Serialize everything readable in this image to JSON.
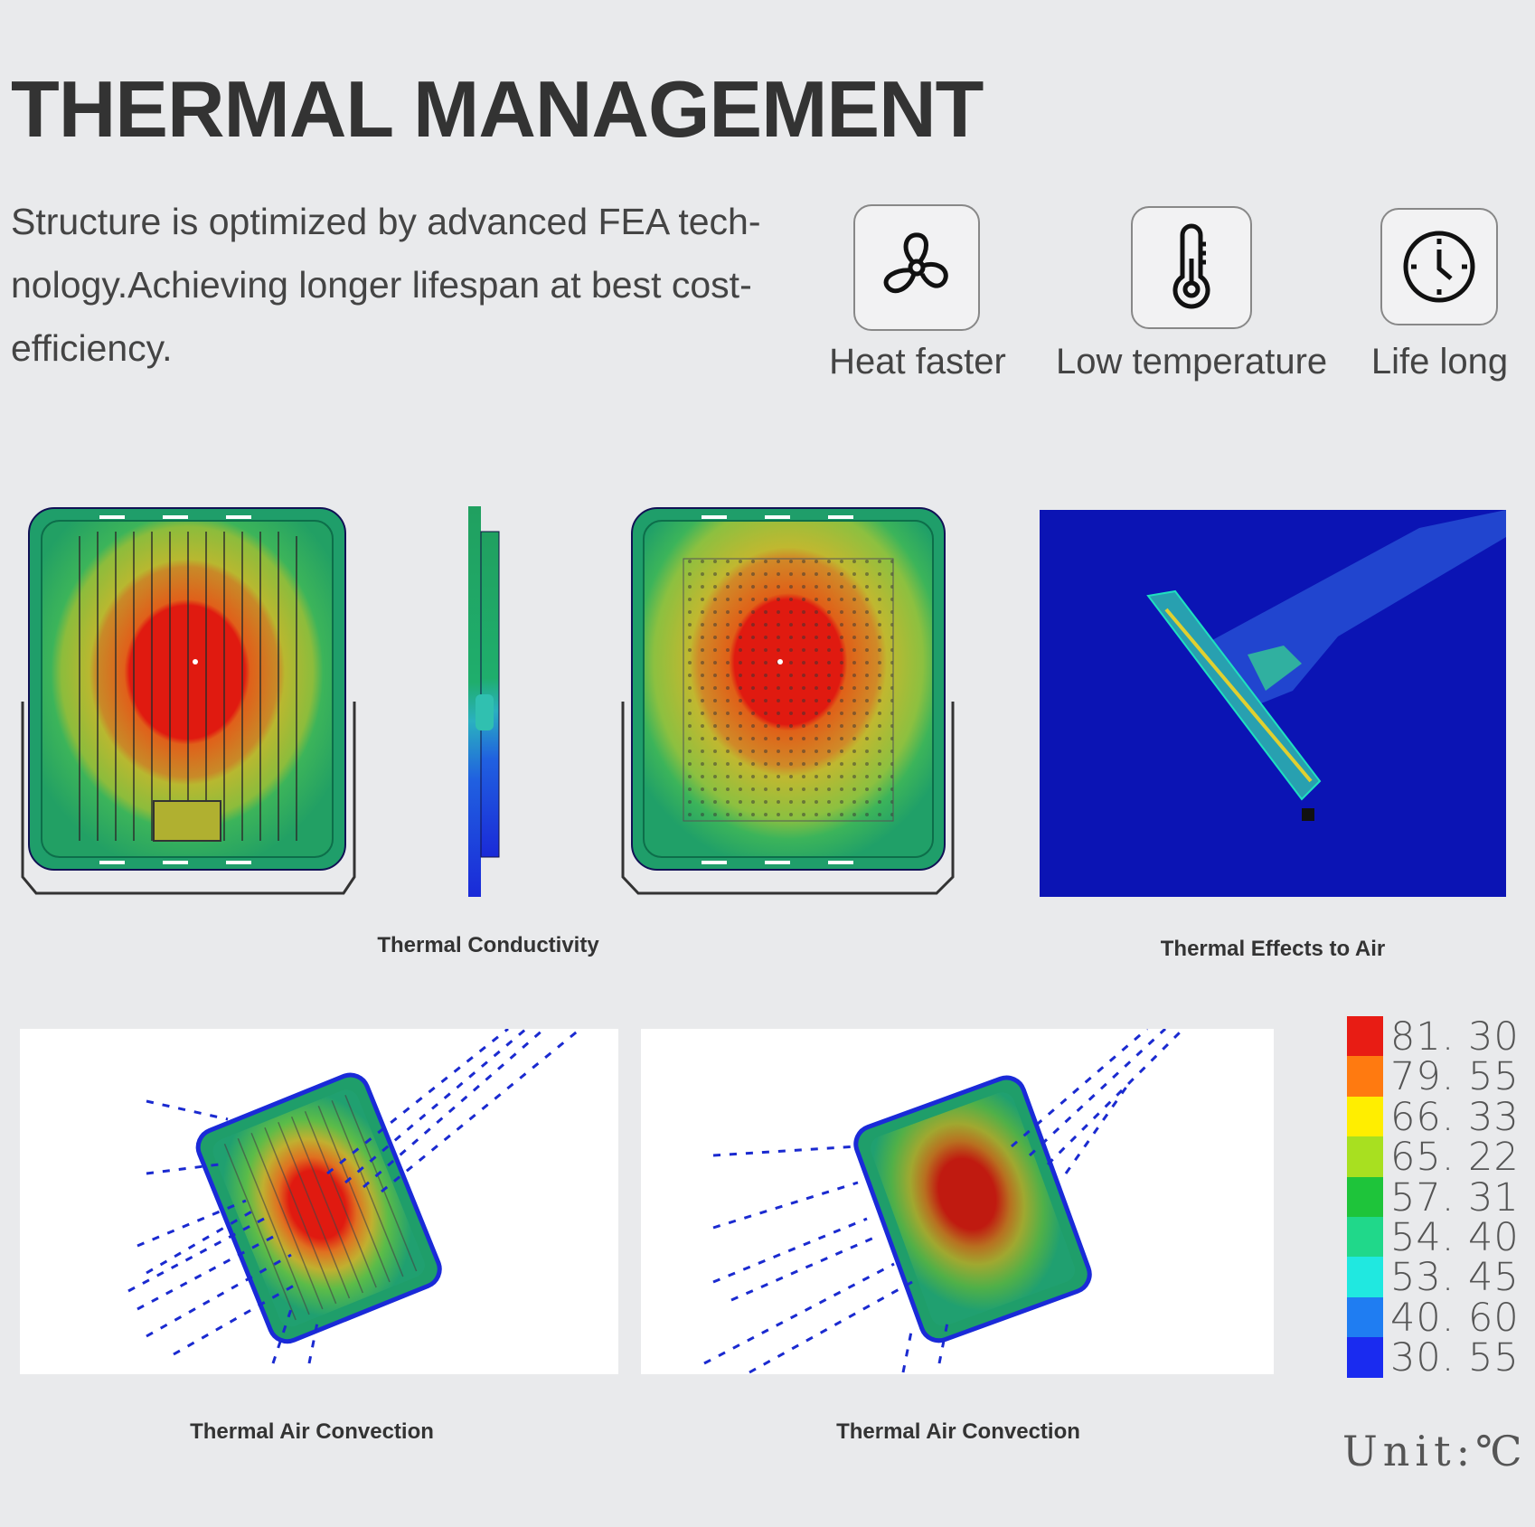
{
  "header": {
    "title": "THERMAL MANAGEMENT",
    "intro": "Structure is optimized by advanced FEA tech- nology.Achieving longer lifespan at best cost-efficiency."
  },
  "features": [
    {
      "label": "Heat faster",
      "icon": "fan-icon"
    },
    {
      "label": "Low temperature",
      "icon": "thermometer-icon"
    },
    {
      "label": "Life long",
      "icon": "clock-icon"
    }
  ],
  "captions": {
    "conductivity": "Thermal Conductivity",
    "effects_to_air": "Thermal Effects to Air",
    "air_convection_1": "Thermal Air Convection",
    "air_convection_2": "Thermal Air Convection"
  },
  "legend": {
    "values": [
      "81. 30",
      "79. 55",
      "66. 33",
      "65. 22",
      "57. 31",
      "54. 40",
      "53. 45",
      "40. 60",
      "30. 55"
    ],
    "colors": [
      "#e81c14",
      "#ff7a10",
      "#ffee00",
      "#a8e020",
      "#1ec43a",
      "#20d88a",
      "#20e8e0",
      "#1f7df2",
      "#1a2bf0"
    ],
    "unit": "Unit:℃"
  }
}
